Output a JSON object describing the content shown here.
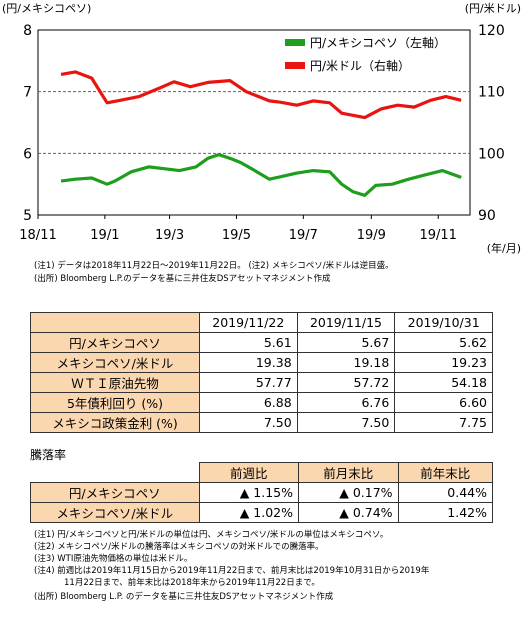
{
  "chart_data": {
    "type": "line",
    "x_tick_labels": [
      "18/11",
      "19/1",
      "19/3",
      "19/5",
      "19/7",
      "19/9",
      "19/11"
    ],
    "x_unit_label": "(年/月)",
    "y_left_label": "(円/メキシコペソ)",
    "y_right_label": "(円/米ドル)",
    "y_left_ticks": [
      "8",
      "7",
      "6",
      "5"
    ],
    "y_right_ticks": [
      "120",
      "110",
      "100",
      "90"
    ],
    "y_left_range": [
      5,
      8
    ],
    "y_right_range": [
      90,
      120
    ],
    "grid": "dashed at 6, 7 (left axis)",
    "legend_position": "top-right",
    "series": [
      {
        "name": "円/メキシコペソ（左軸）",
        "axis": "left",
        "color": "#1e9e1e",
        "points": [
          [
            "2018-11-22",
            5.55
          ],
          [
            "2018-12-05",
            5.58
          ],
          [
            "2018-12-20",
            5.6
          ],
          [
            "2019-01-03",
            5.5
          ],
          [
            "2019-01-10",
            5.55
          ],
          [
            "2019-01-25",
            5.7
          ],
          [
            "2019-02-10",
            5.78
          ],
          [
            "2019-02-25",
            5.75
          ],
          [
            "2019-03-10",
            5.72
          ],
          [
            "2019-03-25",
            5.78
          ],
          [
            "2019-04-05",
            5.92
          ],
          [
            "2019-04-15",
            5.98
          ],
          [
            "2019-04-25",
            5.92
          ],
          [
            "2019-05-05",
            5.85
          ],
          [
            "2019-05-15",
            5.75
          ],
          [
            "2019-05-31",
            5.58
          ],
          [
            "2019-06-10",
            5.62
          ],
          [
            "2019-06-25",
            5.68
          ],
          [
            "2019-07-10",
            5.72
          ],
          [
            "2019-07-25",
            5.7
          ],
          [
            "2019-08-05",
            5.5
          ],
          [
            "2019-08-15",
            5.38
          ],
          [
            "2019-08-26",
            5.32
          ],
          [
            "2019-09-05",
            5.48
          ],
          [
            "2019-09-20",
            5.5
          ],
          [
            "2019-10-05",
            5.58
          ],
          [
            "2019-10-20",
            5.65
          ],
          [
            "2019-11-05",
            5.72
          ],
          [
            "2019-11-22",
            5.61
          ]
        ]
      },
      {
        "name": "円/米ドル（右軸）",
        "axis": "right",
        "color": "#e8140f",
        "points": [
          [
            "2018-11-22",
            112.8
          ],
          [
            "2018-12-05",
            113.2
          ],
          [
            "2018-12-20",
            112.2
          ],
          [
            "2019-01-03",
            108.2
          ],
          [
            "2019-01-15",
            108.6
          ],
          [
            "2019-02-01",
            109.2
          ],
          [
            "2019-02-20",
            110.6
          ],
          [
            "2019-03-05",
            111.6
          ],
          [
            "2019-03-20",
            110.8
          ],
          [
            "2019-04-05",
            111.5
          ],
          [
            "2019-04-25",
            111.8
          ],
          [
            "2019-05-10",
            110.0
          ],
          [
            "2019-05-31",
            108.5
          ],
          [
            "2019-06-10",
            108.3
          ],
          [
            "2019-06-25",
            107.8
          ],
          [
            "2019-07-10",
            108.5
          ],
          [
            "2019-07-25",
            108.2
          ],
          [
            "2019-08-05",
            106.5
          ],
          [
            "2019-08-26",
            105.8
          ],
          [
            "2019-09-10",
            107.2
          ],
          [
            "2019-09-25",
            107.8
          ],
          [
            "2019-10-10",
            107.5
          ],
          [
            "2019-10-25",
            108.6
          ],
          [
            "2019-11-08",
            109.2
          ],
          [
            "2019-11-22",
            108.6
          ]
        ]
      }
    ]
  },
  "chart_notes": [
    "(注1) データは2018年11月22日～2019年11月22日。 (注2) メキシコペソ/米ドルは逆目盛。",
    "(出所) Bloomberg L.P.のデータを基に三井住友DSアセットマネジメント作成"
  ],
  "table1": {
    "headers": [
      "2019/11/22",
      "2019/11/15",
      "2019/10/31"
    ],
    "rows": [
      {
        "label": "円/メキシコペソ",
        "values": [
          "5.61",
          "5.67",
          "5.62"
        ]
      },
      {
        "label": "メキシコペソ/米ドル",
        "values": [
          "19.38",
          "19.18",
          "19.23"
        ]
      },
      {
        "label": "ＷＴＩ原油先物",
        "values": [
          "57.77",
          "57.72",
          "54.18"
        ]
      },
      {
        "label": "5年債利回り (%)",
        "values": [
          "6.88",
          "6.76",
          "6.60"
        ]
      },
      {
        "label": "メキシコ政策金利 (%)",
        "values": [
          "7.50",
          "7.50",
          "7.75"
        ]
      }
    ]
  },
  "section_title": "騰落率",
  "table2": {
    "headers": [
      "前週比",
      "前月末比",
      "前年末比"
    ],
    "rows": [
      {
        "label": "円/メキシコペソ",
        "values": [
          "▲ 1.15%",
          "▲ 0.17%",
          "0.44%"
        ]
      },
      {
        "label": "メキシコペソ/米ドル",
        "values": [
          "▲ 1.02%",
          "▲ 0.74%",
          "1.42%"
        ]
      }
    ]
  },
  "footnotes": [
    "(注1) 円/メキシコペソと円/米ドルの単位は円、メキシコペソ/米ドルの単位はメキシコペソ。",
    "(注2) メキシコペソ/米ドルの騰落率はメキシコペソの対米ドルでの騰落率。",
    "(注3) WTI原油先物価格の単位は米ドル。",
    "(注4) 前週比は2019年11月15日から2019年11月22日まで、前月末比は2019年10月31日から2019年",
    "11月22日まで、前年末比は2018年末から2019年11月22日まで。",
    "(出所) Bloomberg L.P. のデータを基に三井住友DSアセットマネジメント作成"
  ]
}
